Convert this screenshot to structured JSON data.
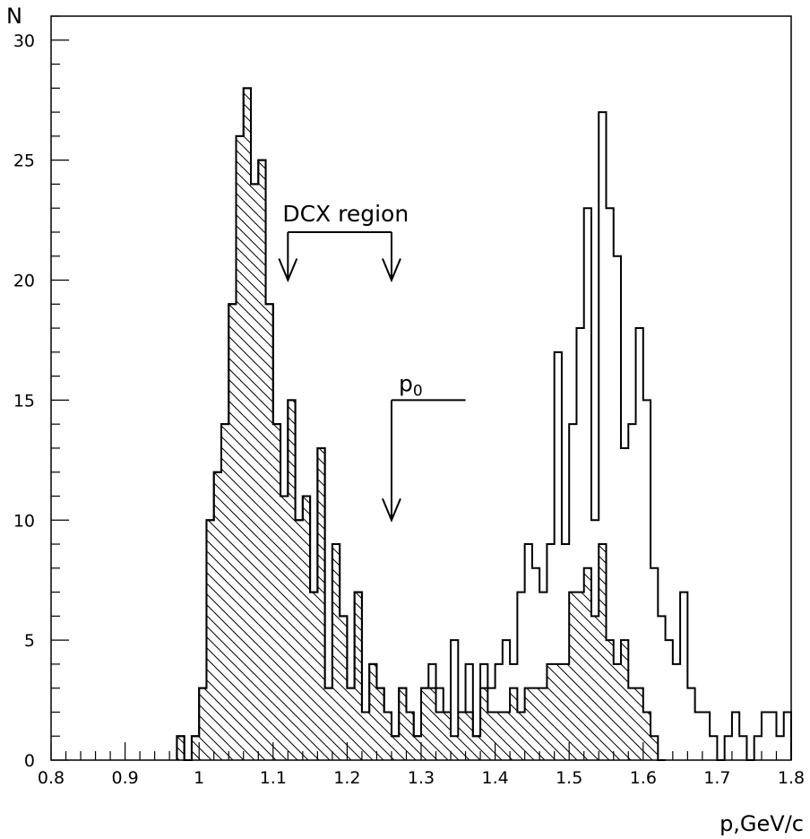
{
  "chart_data": {
    "type": "histogram",
    "title": "",
    "xlabel": "p,GeV/c",
    "ylabel": "N",
    "xlim": [
      0.8,
      1.8
    ],
    "ylim": [
      0,
      31
    ],
    "bin_width": 0.01,
    "x_ticks": [
      "0.8",
      "0.9",
      "1",
      "1.1",
      "1.2",
      "1.3",
      "1.4",
      "1.5",
      "1.6",
      "1.7",
      "1.8"
    ],
    "y_ticks": [
      "0",
      "5",
      "10",
      "15",
      "20",
      "25",
      "30"
    ],
    "grid": false,
    "legend": "none",
    "series": [
      {
        "fill": "none",
        "bins": [
          {
            "x": 0.97,
            "y": 1
          },
          {
            "x": 0.98,
            "y": 0
          },
          {
            "x": 0.99,
            "y": 1
          },
          {
            "x": 1.0,
            "y": 3
          },
          {
            "x": 1.01,
            "y": 10
          },
          {
            "x": 1.02,
            "y": 12
          },
          {
            "x": 1.03,
            "y": 14
          },
          {
            "x": 1.04,
            "y": 19
          },
          {
            "x": 1.05,
            "y": 26
          },
          {
            "x": 1.06,
            "y": 28
          },
          {
            "x": 1.07,
            "y": 24
          },
          {
            "x": 1.08,
            "y": 25
          },
          {
            "x": 1.09,
            "y": 19
          },
          {
            "x": 1.1,
            "y": 14
          },
          {
            "x": 1.11,
            "y": 11
          },
          {
            "x": 1.12,
            "y": 15
          },
          {
            "x": 1.13,
            "y": 10
          },
          {
            "x": 1.14,
            "y": 11
          },
          {
            "x": 1.15,
            "y": 7
          },
          {
            "x": 1.16,
            "y": 13
          },
          {
            "x": 1.17,
            "y": 3
          },
          {
            "x": 1.18,
            "y": 9
          },
          {
            "x": 1.19,
            "y": 6
          },
          {
            "x": 1.2,
            "y": 3
          },
          {
            "x": 1.21,
            "y": 7
          },
          {
            "x": 1.22,
            "y": 2
          },
          {
            "x": 1.23,
            "y": 4
          },
          {
            "x": 1.24,
            "y": 3
          },
          {
            "x": 1.25,
            "y": 2
          },
          {
            "x": 1.26,
            "y": 1
          },
          {
            "x": 1.27,
            "y": 3
          },
          {
            "x": 1.28,
            "y": 2
          },
          {
            "x": 1.29,
            "y": 1
          },
          {
            "x": 1.3,
            "y": 3
          },
          {
            "x": 1.31,
            "y": 4
          },
          {
            "x": 1.32,
            "y": 3
          },
          {
            "x": 1.33,
            "y": 2
          },
          {
            "x": 1.34,
            "y": 5
          },
          {
            "x": 1.35,
            "y": 2
          },
          {
            "x": 1.36,
            "y": 4
          },
          {
            "x": 1.37,
            "y": 1
          },
          {
            "x": 1.38,
            "y": 4
          },
          {
            "x": 1.39,
            "y": 3
          },
          {
            "x": 1.4,
            "y": 4
          },
          {
            "x": 1.41,
            "y": 5
          },
          {
            "x": 1.42,
            "y": 4
          },
          {
            "x": 1.43,
            "y": 7
          },
          {
            "x": 1.44,
            "y": 9
          },
          {
            "x": 1.45,
            "y": 8
          },
          {
            "x": 1.46,
            "y": 7
          },
          {
            "x": 1.47,
            "y": 9
          },
          {
            "x": 1.48,
            "y": 17
          },
          {
            "x": 1.49,
            "y": 9
          },
          {
            "x": 1.5,
            "y": 14
          },
          {
            "x": 1.51,
            "y": 18
          },
          {
            "x": 1.52,
            "y": 23
          },
          {
            "x": 1.53,
            "y": 10
          },
          {
            "x": 1.54,
            "y": 27
          },
          {
            "x": 1.55,
            "y": 23
          },
          {
            "x": 1.56,
            "y": 21
          },
          {
            "x": 1.57,
            "y": 13
          },
          {
            "x": 1.58,
            "y": 14
          },
          {
            "x": 1.59,
            "y": 18
          },
          {
            "x": 1.6,
            "y": 15
          },
          {
            "x": 1.61,
            "y": 8
          },
          {
            "x": 1.62,
            "y": 6
          },
          {
            "x": 1.63,
            "y": 5
          },
          {
            "x": 1.64,
            "y": 4
          },
          {
            "x": 1.65,
            "y": 7
          },
          {
            "x": 1.66,
            "y": 3
          },
          {
            "x": 1.67,
            "y": 2
          },
          {
            "x": 1.68,
            "y": 2
          },
          {
            "x": 1.69,
            "y": 1
          },
          {
            "x": 1.7,
            "y": 0
          },
          {
            "x": 1.71,
            "y": 1
          },
          {
            "x": 1.72,
            "y": 2
          },
          {
            "x": 1.73,
            "y": 1
          },
          {
            "x": 1.74,
            "y": 0
          },
          {
            "x": 1.75,
            "y": 1
          },
          {
            "x": 1.76,
            "y": 2
          },
          {
            "x": 1.77,
            "y": 2
          },
          {
            "x": 1.78,
            "y": 1
          },
          {
            "x": 1.79,
            "y": 2
          }
        ]
      },
      {
        "fill": "hatched",
        "bins": [
          {
            "x": 0.97,
            "y": 1
          },
          {
            "x": 0.98,
            "y": 0
          },
          {
            "x": 0.99,
            "y": 1
          },
          {
            "x": 1.0,
            "y": 3
          },
          {
            "x": 1.01,
            "y": 10
          },
          {
            "x": 1.02,
            "y": 12
          },
          {
            "x": 1.03,
            "y": 14
          },
          {
            "x": 1.04,
            "y": 19
          },
          {
            "x": 1.05,
            "y": 26
          },
          {
            "x": 1.06,
            "y": 28
          },
          {
            "x": 1.07,
            "y": 24
          },
          {
            "x": 1.08,
            "y": 25
          },
          {
            "x": 1.09,
            "y": 19
          },
          {
            "x": 1.1,
            "y": 14
          },
          {
            "x": 1.11,
            "y": 11
          },
          {
            "x": 1.12,
            "y": 15
          },
          {
            "x": 1.13,
            "y": 10
          },
          {
            "x": 1.14,
            "y": 11
          },
          {
            "x": 1.15,
            "y": 7
          },
          {
            "x": 1.16,
            "y": 13
          },
          {
            "x": 1.17,
            "y": 3
          },
          {
            "x": 1.18,
            "y": 9
          },
          {
            "x": 1.19,
            "y": 6
          },
          {
            "x": 1.2,
            "y": 3
          },
          {
            "x": 1.21,
            "y": 7
          },
          {
            "x": 1.22,
            "y": 2
          },
          {
            "x": 1.23,
            "y": 4
          },
          {
            "x": 1.24,
            "y": 3
          },
          {
            "x": 1.25,
            "y": 2
          },
          {
            "x": 1.26,
            "y": 1
          },
          {
            "x": 1.27,
            "y": 3
          },
          {
            "x": 1.28,
            "y": 2
          },
          {
            "x": 1.29,
            "y": 1
          },
          {
            "x": 1.3,
            "y": 3
          },
          {
            "x": 1.31,
            "y": 3
          },
          {
            "x": 1.32,
            "y": 2
          },
          {
            "x": 1.33,
            "y": 2
          },
          {
            "x": 1.34,
            "y": 1
          },
          {
            "x": 1.35,
            "y": 2
          },
          {
            "x": 1.36,
            "y": 2
          },
          {
            "x": 1.37,
            "y": 1
          },
          {
            "x": 1.38,
            "y": 3
          },
          {
            "x": 1.39,
            "y": 2
          },
          {
            "x": 1.4,
            "y": 2
          },
          {
            "x": 1.41,
            "y": 2
          },
          {
            "x": 1.42,
            "y": 3
          },
          {
            "x": 1.43,
            "y": 2
          },
          {
            "x": 1.44,
            "y": 3
          },
          {
            "x": 1.45,
            "y": 3
          },
          {
            "x": 1.46,
            "y": 3
          },
          {
            "x": 1.47,
            "y": 4
          },
          {
            "x": 1.48,
            "y": 4
          },
          {
            "x": 1.49,
            "y": 4
          },
          {
            "x": 1.5,
            "y": 7
          },
          {
            "x": 1.51,
            "y": 7
          },
          {
            "x": 1.52,
            "y": 8
          },
          {
            "x": 1.53,
            "y": 6
          },
          {
            "x": 1.54,
            "y": 9
          },
          {
            "x": 1.55,
            "y": 5
          },
          {
            "x": 1.56,
            "y": 4
          },
          {
            "x": 1.57,
            "y": 5
          },
          {
            "x": 1.58,
            "y": 3
          },
          {
            "x": 1.59,
            "y": 3
          },
          {
            "x": 1.6,
            "y": 2
          },
          {
            "x": 1.61,
            "y": 1
          },
          {
            "x": 1.62,
            "y": 0
          }
        ]
      }
    ],
    "annotations": [
      {
        "text": "DCX region",
        "type": "bracket-arrows",
        "from_x": 1.12,
        "to_x": 1.26,
        "arrow_tip_y": 20,
        "bar_y": 22
      },
      {
        "text": "p",
        "subscript": "0",
        "type": "arrow",
        "x": 1.26,
        "arrow_tip_y": 10,
        "bar_y": 15,
        "bar_end_x": 1.36
      }
    ]
  }
}
